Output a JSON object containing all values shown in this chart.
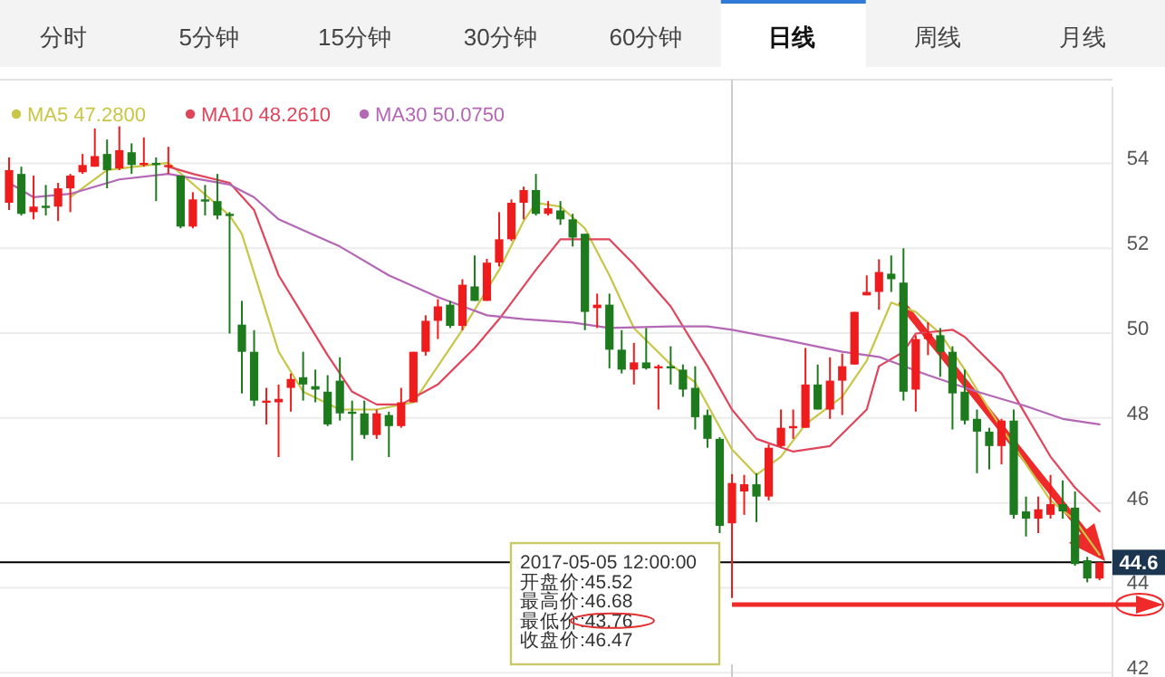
{
  "chart_data": {
    "type": "candlestick",
    "categories": [
      null,
      null,
      null,
      null,
      null,
      null,
      null,
      null,
      null,
      null,
      null,
      null,
      null,
      null,
      null,
      null,
      null,
      null,
      null,
      null,
      null,
      null,
      null,
      null,
      null,
      null,
      null,
      null,
      null,
      null,
      null,
      null,
      null,
      null,
      null,
      null,
      null,
      null,
      null,
      null,
      null,
      null,
      null,
      null,
      null,
      null,
      null,
      null,
      null,
      null,
      null,
      null,
      null,
      null,
      null,
      null,
      null,
      null,
      null,
      null,
      null,
      null,
      null,
      null,
      null,
      null,
      null,
      null,
      null,
      null,
      null,
      null,
      null,
      null,
      null,
      null,
      null,
      null,
      null,
      null,
      null,
      null,
      null,
      null,
      null,
      null,
      null,
      null,
      null,
      null
    ],
    "ohlc": [
      [
        53.07,
        54.14,
        52.9,
        53.84
      ],
      [
        53.75,
        53.92,
        52.77,
        52.81
      ],
      [
        52.85,
        53.71,
        52.68,
        52.98
      ],
      [
        53.0,
        53.49,
        52.77,
        52.95
      ],
      [
        52.98,
        53.54,
        52.64,
        53.41
      ],
      [
        53.41,
        53.75,
        52.85,
        53.71
      ],
      [
        53.79,
        54.22,
        53.75,
        53.96
      ],
      [
        53.92,
        54.82,
        53.92,
        54.17
      ],
      [
        54.22,
        54.56,
        53.41,
        53.84
      ],
      [
        53.88,
        54.87,
        53.84,
        54.31
      ],
      [
        54.26,
        54.47,
        53.75,
        53.96
      ],
      [
        53.96,
        54.61,
        53.92,
        54.01
      ],
      [
        54.01,
        54.14,
        53.11,
        53.96
      ],
      [
        53.92,
        54.39,
        53.75,
        53.96
      ],
      [
        53.71,
        53.71,
        52.47,
        52.51
      ],
      [
        52.51,
        53.32,
        52.47,
        53.15
      ],
      [
        53.15,
        53.49,
        52.77,
        53.11
      ],
      [
        53.11,
        53.75,
        52.68,
        52.77
      ],
      [
        52.81,
        52.85,
        49.99,
        52.77
      ],
      [
        50.2,
        50.76,
        48.58,
        49.56
      ],
      [
        49.56,
        50.07,
        48.28,
        48.41
      ],
      [
        48.37,
        48.71,
        47.85,
        48.41
      ],
      [
        48.37,
        48.79,
        47.08,
        48.45
      ],
      [
        48.71,
        49.05,
        48.15,
        48.92
      ],
      [
        48.96,
        49.56,
        48.41,
        48.79
      ],
      [
        48.75,
        49.14,
        48.37,
        48.67
      ],
      [
        48.62,
        49.01,
        47.81,
        47.85
      ],
      [
        48.88,
        49.43,
        47.94,
        48.11
      ],
      [
        48.15,
        48.41,
        47.0,
        48.11
      ],
      [
        48.11,
        48.41,
        47.51,
        47.6
      ],
      [
        47.6,
        48.2,
        47.51,
        48.11
      ],
      [
        48.07,
        48.15,
        47.08,
        47.81
      ],
      [
        47.81,
        48.71,
        47.77,
        48.37
      ],
      [
        48.37,
        49.56,
        48.37,
        49.56
      ],
      [
        49.56,
        50.42,
        49.47,
        50.29
      ],
      [
        50.29,
        50.8,
        49.86,
        50.63
      ],
      [
        50.67,
        50.76,
        50.12,
        50.17
      ],
      [
        50.17,
        51.27,
        50.07,
        51.14
      ],
      [
        51.1,
        51.83,
        50.76,
        50.76
      ],
      [
        50.76,
        51.75,
        50.76,
        51.66
      ],
      [
        51.66,
        52.85,
        51.57,
        52.21
      ],
      [
        52.21,
        53.15,
        52.17,
        53.07
      ],
      [
        53.07,
        53.45,
        52.68,
        53.37
      ],
      [
        53.37,
        53.75,
        52.77,
        52.81
      ],
      [
        52.81,
        53.11,
        52.77,
        52.94
      ],
      [
        52.89,
        53.11,
        52.55,
        52.68
      ],
      [
        52.68,
        52.81,
        52.04,
        52.25
      ],
      [
        52.34,
        52.34,
        50.07,
        50.5
      ],
      [
        50.59,
        50.93,
        50.12,
        50.67
      ],
      [
        50.67,
        50.93,
        49.17,
        49.61
      ],
      [
        49.61,
        50.07,
        49.05,
        49.14
      ],
      [
        49.14,
        49.77,
        48.79,
        49.31
      ],
      [
        49.31,
        50.12,
        49.14,
        49.17
      ],
      [
        49.17,
        49.26,
        48.2,
        49.22
      ],
      [
        49.22,
        49.69,
        48.79,
        49.17
      ],
      [
        49.14,
        49.26,
        48.5,
        48.67
      ],
      [
        48.71,
        49.22,
        47.73,
        48.02
      ],
      [
        48.07,
        48.2,
        47.3,
        47.51
      ],
      [
        47.51,
        47.55,
        45.29,
        45.46
      ],
      [
        45.52,
        46.68,
        43.76,
        46.47
      ],
      [
        46.27,
        46.66,
        45.72,
        46.44
      ],
      [
        46.44,
        46.7,
        45.55,
        46.15
      ],
      [
        46.15,
        47.38,
        46.06,
        47.3
      ],
      [
        47.34,
        48.2,
        47.3,
        47.77
      ],
      [
        47.77,
        48.2,
        47.51,
        47.81
      ],
      [
        47.77,
        49.65,
        47.77,
        48.79
      ],
      [
        48.79,
        49.26,
        48.2,
        48.2
      ],
      [
        48.2,
        49.43,
        47.98,
        48.88
      ],
      [
        48.88,
        49.52,
        48.07,
        49.22
      ],
      [
        49.26,
        50.5,
        49.26,
        50.5
      ],
      [
        50.89,
        51.36,
        50.89,
        50.97
      ],
      [
        50.97,
        51.74,
        50.55,
        51.44
      ],
      [
        51.4,
        51.83,
        50.97,
        51.27
      ],
      [
        51.19,
        52.0,
        48.41,
        48.62
      ],
      [
        48.67,
        49.95,
        48.15,
        49.86
      ],
      [
        49.86,
        50.25,
        49.48,
        49.99
      ],
      [
        49.95,
        50.12,
        48.97,
        49.56
      ],
      [
        49.56,
        49.69,
        47.73,
        48.58
      ],
      [
        48.62,
        49.14,
        47.85,
        47.94
      ],
      [
        47.98,
        48.2,
        46.7,
        47.68
      ],
      [
        47.68,
        47.77,
        46.79,
        47.34
      ],
      [
        47.34,
        47.98,
        46.91,
        47.94
      ],
      [
        47.94,
        48.2,
        45.63,
        45.72
      ],
      [
        45.8,
        46.15,
        45.21,
        45.63
      ],
      [
        45.63,
        46.15,
        45.29,
        45.85
      ],
      [
        45.72,
        46.66,
        45.63,
        45.97
      ],
      [
        45.97,
        46.53,
        45.63,
        45.8
      ],
      [
        45.89,
        46.27,
        44.52,
        44.56
      ],
      [
        44.65,
        44.73,
        44.13,
        44.22
      ],
      [
        44.22,
        44.6,
        44.18,
        44.6
      ]
    ],
    "colors": [
      "#ee1c1c",
      "#1d7a1d",
      "#ee1c1c",
      "#1d7a1d",
      "#ee1c1c",
      "#ee1c1c",
      "#ee1c1c",
      "#ee1c1c",
      "#1d7a1d",
      "#ee1c1c",
      "#1d7a1d",
      "#ee1c1c",
      "#1d7a1d",
      "#ee1c1c",
      "#1d7a1d",
      "#ee1c1c",
      "#1d7a1d",
      "#1d7a1d",
      "#1d7a1d",
      "#1d7a1d",
      "#1d7a1d",
      "#ee1c1c",
      "#ee1c1c",
      "#ee1c1c",
      "#1d7a1d",
      "#1d7a1d",
      "#1d7a1d",
      "#1d7a1d",
      "#1d7a1d",
      "#1d7a1d",
      "#ee1c1c",
      "#1d7a1d",
      "#ee1c1c",
      "#ee1c1c",
      "#ee1c1c",
      "#ee1c1c",
      "#1d7a1d",
      "#ee1c1c",
      "#1d7a1d",
      "#ee1c1c",
      "#ee1c1c",
      "#ee1c1c",
      "#ee1c1c",
      "#1d7a1d",
      "#ee1c1c",
      "#1d7a1d",
      "#1d7a1d",
      "#1d7a1d",
      "#ee1c1c",
      "#1d7a1d",
      "#1d7a1d",
      "#ee1c1c",
      "#1d7a1d",
      "#ee1c1c",
      "#1d7a1d",
      "#1d7a1d",
      "#1d7a1d",
      "#1d7a1d",
      "#1d7a1d",
      "#ee1c1c",
      "#ee1c1c",
      "#1d7a1d",
      "#ee1c1c",
      "#ee1c1c",
      "#ee1c1c",
      "#ee1c1c",
      "#1d7a1d",
      "#ee1c1c",
      "#ee1c1c",
      "#ee1c1c",
      "#ee1c1c",
      "#ee1c1c",
      "#1d7a1d",
      "#1d7a1d",
      "#ee1c1c",
      "#ee1c1c",
      "#1d7a1d",
      "#1d7a1d",
      "#1d7a1d",
      "#1d7a1d",
      "#1d7a1d",
      "#ee1c1c",
      "#1d7a1d",
      "#1d7a1d",
      "#ee1c1c",
      "#ee1c1c",
      "#1d7a1d",
      "#1d7a1d",
      "#1d7a1d",
      "#ee1c1c"
    ],
    "series": [
      {
        "name": "MA5 47.2800",
        "type": "line",
        "color": "#c8c646",
        "values": [
          null,
          null,
          null,
          null,
          null,
          53.2,
          null,
          null,
          53.84,
          null,
          null,
          null,
          null,
          54.01,
          null,
          null,
          null,
          null,
          52.77,
          52.34,
          null,
          null,
          49.56,
          null,
          48.62,
          null,
          null,
          48.2,
          null,
          null,
          48.2,
          null,
          null,
          48.37,
          null,
          null,
          null,
          50.08,
          null,
          null,
          51.49,
          null,
          52.64,
          53.07,
          null,
          52.98,
          null,
          52.47,
          null,
          51.36,
          null,
          50.12,
          null,
          null,
          49.26,
          null,
          48.84,
          null,
          null,
          47.26,
          null,
          46.66,
          null,
          47.09,
          null,
          47.85,
          null,
          null,
          48.5,
          null,
          49.35,
          null,
          50.72,
          null,
          50.5,
          null,
          49.99,
          null,
          49.14,
          null,
          48.2,
          null,
          47.34,
          null,
          null,
          46.06,
          null,
          45.59,
          null,
          44.78
        ]
      },
      {
        "name": "MA10 48.2610",
        "type": "line",
        "color": "#e0455c",
        "values": [
          null,
          null,
          null,
          null,
          null,
          null,
          null,
          null,
          null,
          null,
          null,
          null,
          null,
          53.92,
          null,
          53.75,
          null,
          null,
          53.54,
          null,
          52.9,
          null,
          51.36,
          null,
          50.42,
          null,
          49.48,
          null,
          48.62,
          null,
          48.32,
          null,
          48.32,
          null,
          null,
          48.79,
          null,
          null,
          49.65,
          null,
          50.33,
          null,
          null,
          51.49,
          null,
          52.21,
          null,
          null,
          null,
          52.21,
          null,
          51.62,
          null,
          null,
          50.63,
          null,
          null,
          49.22,
          null,
          48.2,
          null,
          47.51,
          null,
          null,
          47.21,
          null,
          null,
          47.34,
          null,
          null,
          48.2,
          49.22,
          null,
          49.56,
          49.99,
          null,
          null,
          50.08,
          49.91,
          null,
          null,
          49.05,
          null,
          48.07,
          null,
          47.09,
          null,
          46.36,
          null,
          45.8
        ]
      },
      {
        "name": "MA30 50.0750",
        "type": "line",
        "color": "#b467b4",
        "values": [
          53.54,
          null,
          53.2,
          null,
          null,
          53.28,
          null,
          null,
          null,
          53.62,
          null,
          null,
          null,
          53.75,
          null,
          null,
          null,
          null,
          53.5,
          null,
          53.2,
          null,
          52.68,
          null,
          null,
          null,
          null,
          52.04,
          null,
          null,
          null,
          51.36,
          null,
          null,
          null,
          50.85,
          null,
          null,
          null,
          50.42,
          null,
          null,
          50.33,
          null,
          null,
          null,
          50.25,
          null,
          null,
          50.12,
          null,
          null,
          null,
          null,
          50.16,
          null,
          null,
          50.16,
          null,
          50.08,
          null,
          null,
          null,
          49.86,
          null,
          null,
          null,
          null,
          49.56,
          null,
          null,
          49.44,
          null,
          null,
          null,
          49.01,
          null,
          null,
          null,
          48.62,
          null,
          null,
          null,
          48.28,
          null,
          null,
          47.98,
          null,
          null,
          47.85
        ]
      }
    ],
    "ylim": [
      41.9,
      55.8
    ],
    "yticks": [
      42,
      44,
      46,
      48,
      50,
      52,
      54
    ],
    "grid": "y",
    "legend": "top left",
    "tick_labels": "y",
    "ref_lines": [
      {
        "axis": "y",
        "value": 44.6,
        "label": "44.6",
        "color": "#000000"
      }
    ],
    "annotations": [
      "分时",
      "5分钟",
      "15分钟",
      "30分钟",
      "60分钟",
      "日线",
      "周线",
      "月线",
      "2017-05-05 12:00:00",
      "开盘价:45.52",
      "最高价:46.68",
      "最低价:43.76",
      "收盘价:46.47"
    ]
  }
}
